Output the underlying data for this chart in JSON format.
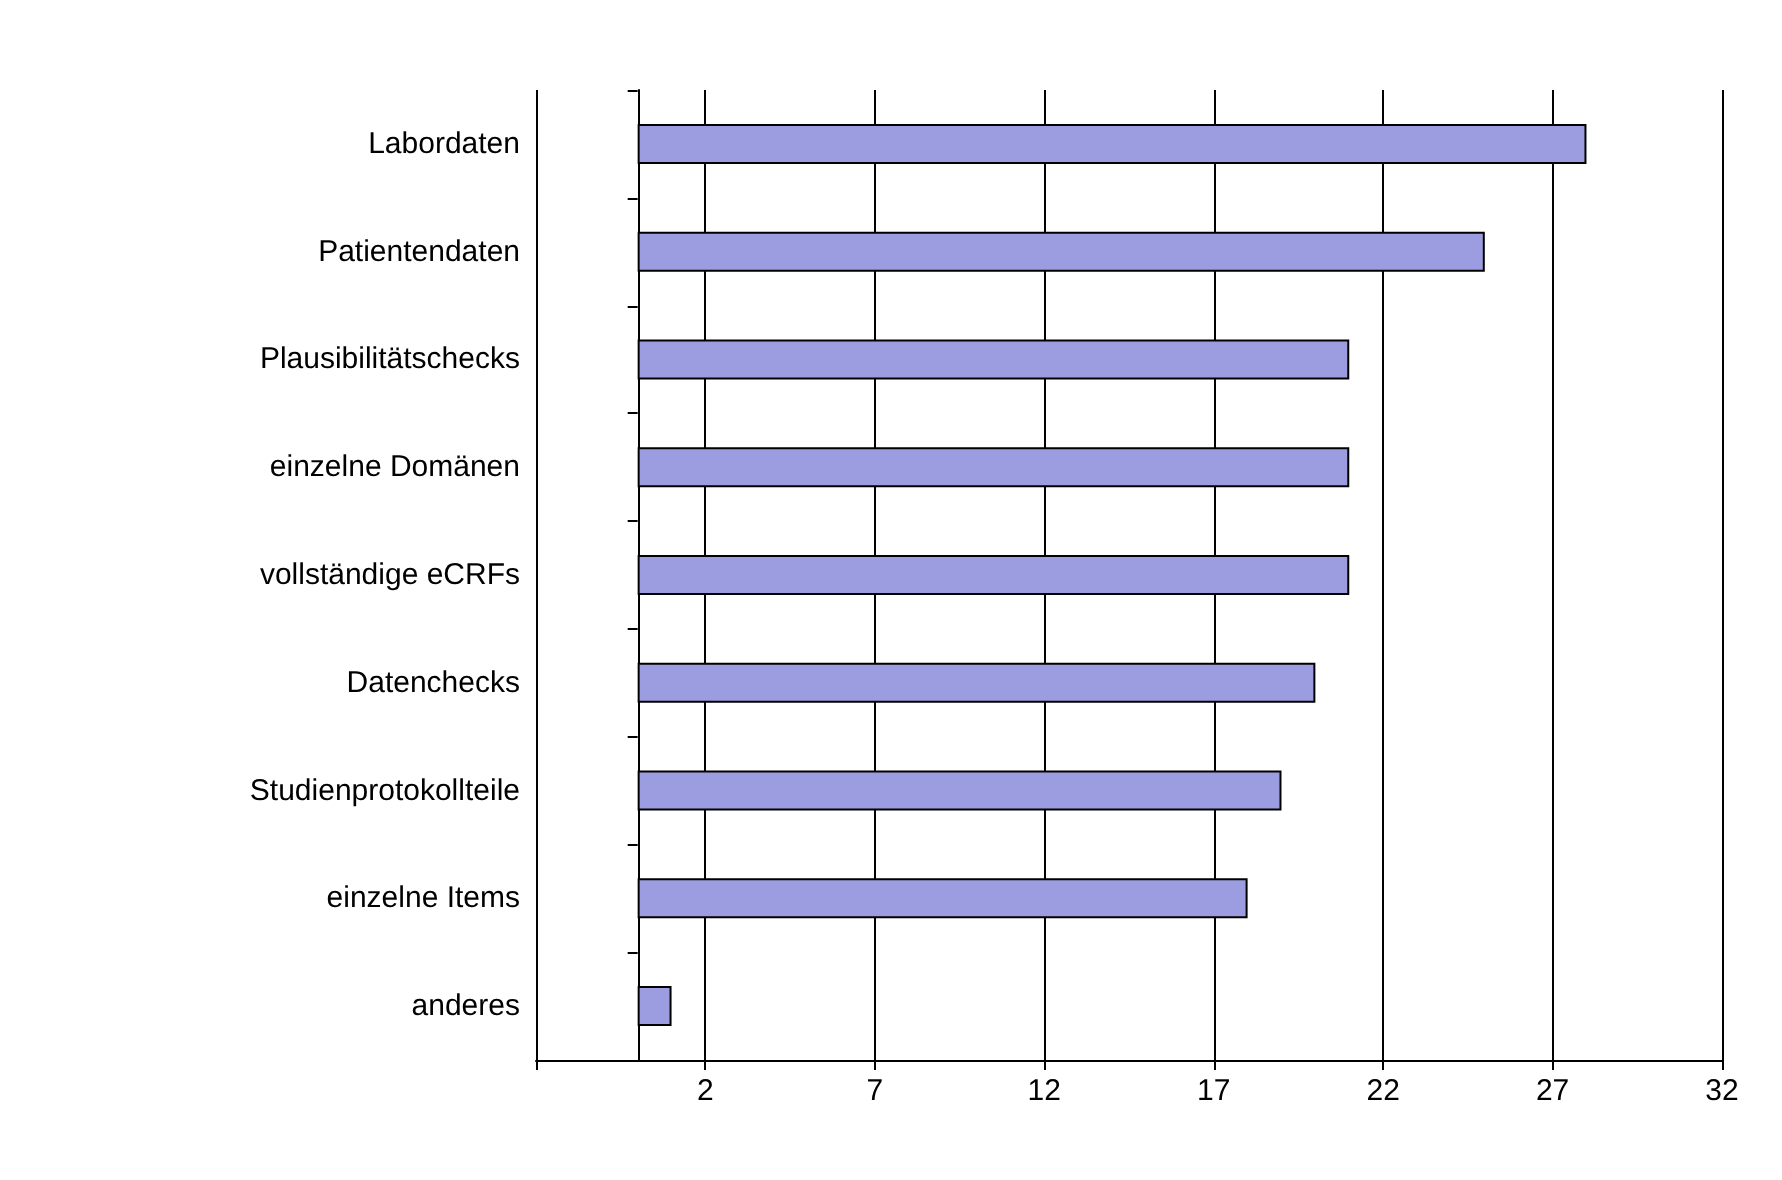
{
  "chart_data": {
    "type": "bar",
    "orientation": "horizontal",
    "categories": [
      "Labordaten",
      "Patientendaten",
      "Plausibilitätschecks",
      "einzelne Domänen",
      "vollständige eCRFs",
      "Datenchecks",
      "Studienprotokollteile",
      "einzelne Items",
      "anderes"
    ],
    "values": [
      28,
      25,
      21,
      21,
      21,
      20,
      19,
      18,
      1
    ],
    "color": "#9c9ce0",
    "xlim": [
      -3,
      32
    ],
    "xticks": [
      {
        "value": -3,
        "label": null
      },
      2,
      7,
      12,
      17,
      22,
      27,
      32
    ],
    "grid": "x"
  }
}
